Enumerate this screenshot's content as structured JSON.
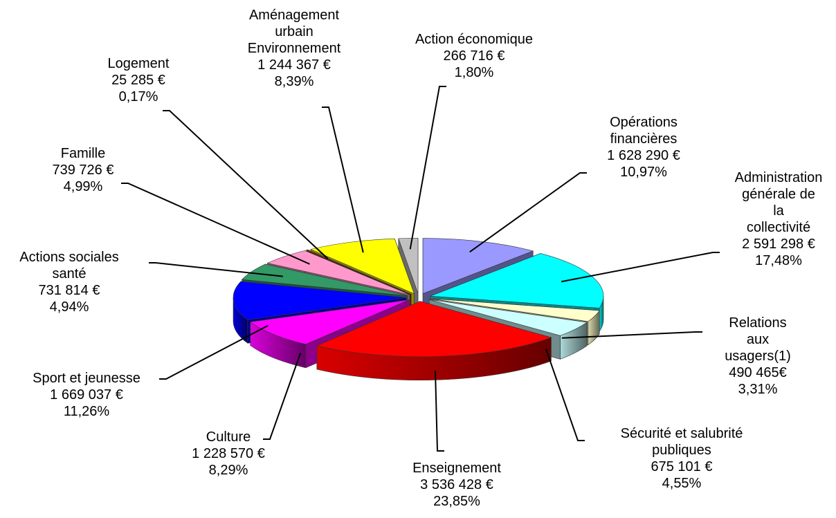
{
  "chart_data": {
    "type": "pie3d",
    "categories": [
      "Opérations\nfinancières",
      "Administration\ngénérale de la\ncollectivité",
      "Relations  aux\nusagers(1)",
      "Sécurité et salubrité\npubliques",
      "Enseignement",
      "Culture",
      "Sport et jeunesse",
      "Actions sociales\nsanté",
      "Famille",
      "Logement",
      "Aménagement\nurbain\nEnvironnement",
      "Action économique"
    ],
    "values": [
      1628290,
      2591298,
      490465,
      675101,
      3536428,
      1228570,
      1669037,
      731814,
      739726,
      25285,
      1244367,
      266716
    ],
    "value_labels": [
      "1 628 290 €",
      "2 591 298 €",
      "490 465€",
      "675 101 €",
      "3 536 428 €",
      "1 228 570 €",
      "1 669 037 €",
      "731 814 €",
      "739 726 €",
      "25 285 €",
      "1 244 367 €",
      "266 716 €"
    ],
    "percentages": [
      10.97,
      17.48,
      3.31,
      4.55,
      23.85,
      8.29,
      11.26,
      4.94,
      4.99,
      0.17,
      8.39,
      1.8
    ],
    "percentage_labels": [
      "10,97%",
      "17,48%",
      "3,31%",
      "4,55%",
      "23,85%",
      "8,29%",
      "11,26%",
      "4,94%",
      "4,99%",
      "0,17%",
      "8,39%",
      "1,80%"
    ],
    "colors": [
      "#9999ff",
      "#00ffff",
      "#ffffcc",
      "#ccffff",
      "#ff0000",
      "#ff00ff",
      "#0000ff",
      "#339966",
      "#ff99cc",
      "#993300",
      "#ffff00",
      "#c0c0c0"
    ]
  }
}
